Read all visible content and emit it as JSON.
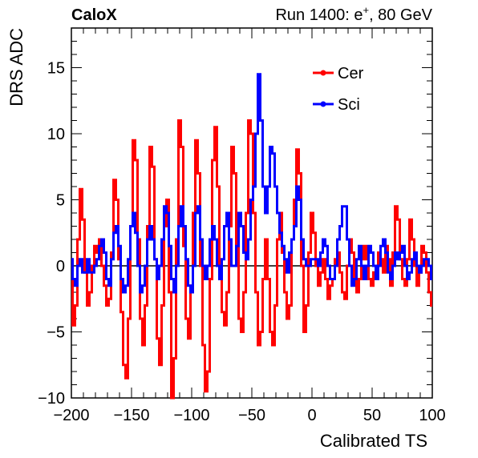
{
  "header": {
    "experiment": "CaloX",
    "run_prefix": "Run 1400: e",
    "run_superscript": "+",
    "run_suffix": ", 80 GeV"
  },
  "chart_data": {
    "type": "line",
    "xlabel": "Calibrated TS",
    "ylabel": "DRS ADC",
    "xlim": [
      -200,
      100
    ],
    "ylim": [
      -10,
      18
    ],
    "x_ticks": [
      -200,
      -150,
      -100,
      -50,
      0,
      50,
      100
    ],
    "y_ticks": [
      -10,
      -5,
      0,
      5,
      10,
      15
    ],
    "x_tick_labels": [
      "−200",
      "−150",
      "−100",
      "−50",
      "0",
      "50",
      "100"
    ],
    "y_tick_labels": [
      "−10",
      "−5",
      "0",
      "5",
      "10",
      "15"
    ],
    "baseline": 0,
    "legend": "top-right",
    "series": [
      {
        "name": "Cer",
        "color": "#ff0000",
        "points": [
          [
            -200,
            -1
          ],
          [
            -198,
            -4.5
          ],
          [
            -196,
            -3
          ],
          [
            -194,
            2
          ],
          [
            -192,
            5.8
          ],
          [
            -190,
            3.5
          ],
          [
            -188,
            -0.5
          ],
          [
            -186,
            -3
          ],
          [
            -184,
            -2
          ],
          [
            -182,
            0
          ],
          [
            -180,
            1.5
          ],
          [
            -178,
            1
          ],
          [
            -176,
            2
          ],
          [
            -174,
            0
          ],
          [
            -172,
            -1.5
          ],
          [
            -170,
            -3
          ],
          [
            -168,
            -2.5
          ],
          [
            -166,
            1
          ],
          [
            -164,
            6.5
          ],
          [
            -162,
            5
          ],
          [
            -160,
            0.5
          ],
          [
            -158,
            -3.5
          ],
          [
            -156,
            -7.5
          ],
          [
            -154,
            -8.5
          ],
          [
            -152,
            -4
          ],
          [
            -150,
            3
          ],
          [
            -148,
            9.5
          ],
          [
            -146,
            8
          ],
          [
            -144,
            2
          ],
          [
            -142,
            -4
          ],
          [
            -140,
            -6
          ],
          [
            -138,
            -3
          ],
          [
            -136,
            3
          ],
          [
            -134,
            9
          ],
          [
            -132,
            7.5
          ],
          [
            -130,
            0.5
          ],
          [
            -128,
            -5.5
          ],
          [
            -126,
            -7.5
          ],
          [
            -124,
            -3
          ],
          [
            -122,
            3
          ],
          [
            -120,
            5
          ],
          [
            -118,
            -2
          ],
          [
            -116,
            -10
          ],
          [
            -114,
            -7
          ],
          [
            -112,
            2
          ],
          [
            -110,
            11
          ],
          [
            -108,
            9
          ],
          [
            -106,
            1.5
          ],
          [
            -104,
            -4
          ],
          [
            -102,
            -5.5
          ],
          [
            -100,
            -1.5
          ],
          [
            -98,
            4
          ],
          [
            -96,
            9.5
          ],
          [
            -94,
            7
          ],
          [
            -92,
            0
          ],
          [
            -90,
            -6
          ],
          [
            -88,
            -9.5
          ],
          [
            -86,
            -8
          ],
          [
            -84,
            -1
          ],
          [
            -82,
            8
          ],
          [
            -80,
            10.5
          ],
          [
            -78,
            6
          ],
          [
            -76,
            0
          ],
          [
            -74,
            -3.5
          ],
          [
            -72,
            -4.5
          ],
          [
            -70,
            -2
          ],
          [
            -68,
            3
          ],
          [
            -66,
            9
          ],
          [
            -64,
            7
          ],
          [
            -62,
            1.5
          ],
          [
            -60,
            -4
          ],
          [
            -58,
            -5
          ],
          [
            -56,
            -2
          ],
          [
            -54,
            4
          ],
          [
            -52,
            11
          ],
          [
            -50,
            10
          ],
          [
            -48,
            4
          ],
          [
            -46,
            -2
          ],
          [
            -44,
            -6
          ],
          [
            -42,
            -5
          ],
          [
            -40,
            -1
          ],
          [
            -38,
            2
          ],
          [
            -36,
            -1
          ],
          [
            -34,
            -5
          ],
          [
            -32,
            -6
          ],
          [
            -30,
            -3
          ],
          [
            -28,
            2
          ],
          [
            -26,
            4
          ],
          [
            -24,
            1
          ],
          [
            -22,
            -2
          ],
          [
            -20,
            -4
          ],
          [
            -18,
            -3
          ],
          [
            -16,
            2
          ],
          [
            -14,
            5
          ],
          [
            -12,
            8.8
          ],
          [
            -10,
            7
          ],
          [
            -8,
            0
          ],
          [
            -6,
            -5
          ],
          [
            -4,
            -3
          ],
          [
            -2,
            1
          ],
          [
            0,
            4
          ],
          [
            2,
            2.5
          ],
          [
            4,
            0
          ],
          [
            6,
            -1.5
          ],
          [
            8,
            -0.5
          ],
          [
            10,
            0.5
          ],
          [
            12,
            -1
          ],
          [
            14,
            -2.5
          ],
          [
            16,
            -1.5
          ],
          [
            18,
            -1
          ],
          [
            20,
            0.5
          ],
          [
            22,
            1
          ],
          [
            24,
            -0.5
          ],
          [
            26,
            -2
          ],
          [
            28,
            -2.5
          ],
          [
            30,
            0
          ],
          [
            32,
            2
          ],
          [
            34,
            1
          ],
          [
            36,
            -1
          ],
          [
            38,
            -2
          ],
          [
            40,
            -1
          ],
          [
            42,
            0.5
          ],
          [
            44,
            1.5
          ],
          [
            46,
            0.5
          ],
          [
            48,
            -1
          ],
          [
            50,
            -1.5
          ],
          [
            52,
            -0.5
          ],
          [
            54,
            0
          ],
          [
            56,
            1
          ],
          [
            58,
            0.5
          ],
          [
            60,
            -0.5
          ],
          [
            62,
            1.5
          ],
          [
            64,
            0.5
          ],
          [
            66,
            -1.5
          ],
          [
            68,
            1
          ],
          [
            70,
            4.5
          ],
          [
            72,
            3.5
          ],
          [
            74,
            0.5
          ],
          [
            76,
            -1
          ],
          [
            78,
            -1.5
          ],
          [
            80,
            0.5
          ],
          [
            82,
            3.5
          ],
          [
            84,
            2
          ],
          [
            86,
            0
          ],
          [
            88,
            -1.5
          ],
          [
            90,
            -0.5
          ],
          [
            92,
            1.5
          ],
          [
            94,
            1
          ],
          [
            96,
            -0.5
          ],
          [
            98,
            -2
          ],
          [
            100,
            -3
          ]
        ]
      },
      {
        "name": "Sci",
        "color": "#0000ff",
        "points": [
          [
            -200,
            0.5
          ],
          [
            -198,
            -1
          ],
          [
            -196,
            -1.5
          ],
          [
            -194,
            0
          ],
          [
            -192,
            0.5
          ],
          [
            -190,
            -0.5
          ],
          [
            -188,
            -0.5
          ],
          [
            -186,
            0.5
          ],
          [
            -184,
            -0.5
          ],
          [
            -182,
            -0.5
          ],
          [
            -180,
            0
          ],
          [
            -178,
            0.5
          ],
          [
            -176,
            1.5
          ],
          [
            -174,
            2
          ],
          [
            -172,
            1
          ],
          [
            -170,
            -1
          ],
          [
            -168,
            -1.5
          ],
          [
            -166,
            0.5
          ],
          [
            -164,
            2.5
          ],
          [
            -162,
            3
          ],
          [
            -160,
            1.5
          ],
          [
            -158,
            -1
          ],
          [
            -156,
            -2
          ],
          [
            -154,
            -1.5
          ],
          [
            -152,
            0.5
          ],
          [
            -150,
            3
          ],
          [
            -148,
            4
          ],
          [
            -146,
            2.5
          ],
          [
            -144,
            0
          ],
          [
            -142,
            -2
          ],
          [
            -140,
            -1.5
          ],
          [
            -138,
            0
          ],
          [
            -136,
            2
          ],
          [
            -134,
            3
          ],
          [
            -132,
            2
          ],
          [
            -130,
            0.5
          ],
          [
            -128,
            -1
          ],
          [
            -126,
            0
          ],
          [
            -124,
            2
          ],
          [
            -122,
            4.5
          ],
          [
            -120,
            4
          ],
          [
            -118,
            1.5
          ],
          [
            -116,
            -1
          ],
          [
            -114,
            -2
          ],
          [
            -112,
            0
          ],
          [
            -110,
            3
          ],
          [
            -108,
            4.5
          ],
          [
            -106,
            3
          ],
          [
            -104,
            0.5
          ],
          [
            -102,
            -1.5
          ],
          [
            -100,
            -2
          ],
          [
            -98,
            0
          ],
          [
            -96,
            4
          ],
          [
            -94,
            4.5
          ],
          [
            -92,
            2
          ],
          [
            -90,
            0
          ],
          [
            -88,
            -1
          ],
          [
            -86,
            0
          ],
          [
            -84,
            2
          ],
          [
            -82,
            3
          ],
          [
            -80,
            2
          ],
          [
            -78,
            0
          ],
          [
            -76,
            -1
          ],
          [
            -74,
            0.5
          ],
          [
            -72,
            3
          ],
          [
            -70,
            4
          ],
          [
            -68,
            2
          ],
          [
            -66,
            0
          ],
          [
            -64,
            0
          ],
          [
            -62,
            1.5
          ],
          [
            -60,
            4
          ],
          [
            -58,
            3
          ],
          [
            -56,
            1
          ],
          [
            -54,
            0.5
          ],
          [
            -52,
            2
          ],
          [
            -50,
            5
          ],
          [
            -48,
            6
          ],
          [
            -46,
            10
          ],
          [
            -44,
            14.5
          ],
          [
            -42,
            11
          ],
          [
            -40,
            6
          ],
          [
            -38,
            4
          ],
          [
            -36,
            6
          ],
          [
            -34,
            9
          ],
          [
            -32,
            8.5
          ],
          [
            -30,
            6
          ],
          [
            -28,
            4
          ],
          [
            -26,
            2.5
          ],
          [
            -24,
            1.5
          ],
          [
            -22,
            0.5
          ],
          [
            -20,
            -0.5
          ],
          [
            -18,
            1
          ],
          [
            -16,
            2
          ],
          [
            -14,
            3
          ],
          [
            -12,
            6
          ],
          [
            -10,
            5
          ],
          [
            -8,
            2
          ],
          [
            -6,
            0.5
          ],
          [
            -4,
            0
          ],
          [
            -2,
            0
          ],
          [
            0,
            0.5
          ],
          [
            2,
            0.5
          ],
          [
            4,
            0.5
          ],
          [
            6,
            0
          ],
          [
            8,
            1
          ],
          [
            10,
            2
          ],
          [
            12,
            1.5
          ],
          [
            14,
            0
          ],
          [
            16,
            -1
          ],
          [
            18,
            -1
          ],
          [
            20,
            0
          ],
          [
            22,
            2
          ],
          [
            24,
            3
          ],
          [
            26,
            4.5
          ],
          [
            28,
            4.5
          ],
          [
            30,
            2
          ],
          [
            32,
            0
          ],
          [
            34,
            -1.5
          ],
          [
            36,
            -1
          ],
          [
            38,
            0.5
          ],
          [
            40,
            1.5
          ],
          [
            42,
            0
          ],
          [
            44,
            -1
          ],
          [
            46,
            0
          ],
          [
            48,
            1.5
          ],
          [
            50,
            1
          ],
          [
            52,
            0
          ],
          [
            54,
            -1
          ],
          [
            56,
            0
          ],
          [
            58,
            1.5
          ],
          [
            60,
            2
          ],
          [
            62,
            1
          ],
          [
            64,
            -0.5
          ],
          [
            66,
            -1
          ],
          [
            68,
            0
          ],
          [
            70,
            1
          ],
          [
            72,
            0.5
          ],
          [
            74,
            1
          ],
          [
            76,
            1.5
          ],
          [
            78,
            0
          ],
          [
            80,
            -1
          ],
          [
            82,
            -0.5
          ],
          [
            84,
            0.5
          ],
          [
            86,
            1
          ],
          [
            88,
            0
          ],
          [
            90,
            -0.5
          ],
          [
            92,
            0
          ],
          [
            94,
            0.5
          ],
          [
            96,
            0.5
          ],
          [
            98,
            0
          ],
          [
            100,
            -1
          ]
        ]
      }
    ]
  }
}
